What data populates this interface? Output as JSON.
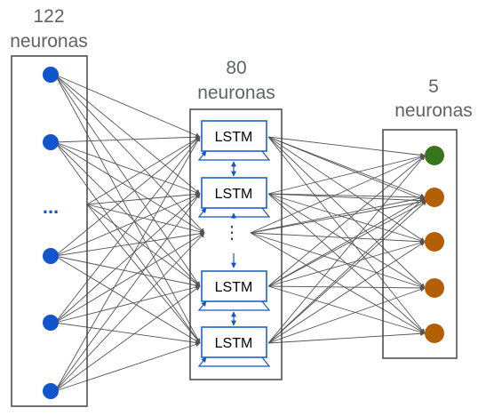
{
  "input_layer": {
    "count_label": "122",
    "unit_label": "neuronas",
    "node_color": "#1155cc",
    "ellipsis": "..."
  },
  "hidden_layer": {
    "count_label": "80",
    "unit_label": "neuronas",
    "cell_label": "LSTM",
    "cell_color": "#1155cc",
    "ellipsis": "⋮"
  },
  "output_layer": {
    "count_label": "5",
    "unit_label": "neuronas",
    "highlight_color": "#38761d",
    "node_color": "#b45f06"
  },
  "colors": {
    "frame": "#444444",
    "edge": "#555555",
    "label": "#5f6368"
  }
}
